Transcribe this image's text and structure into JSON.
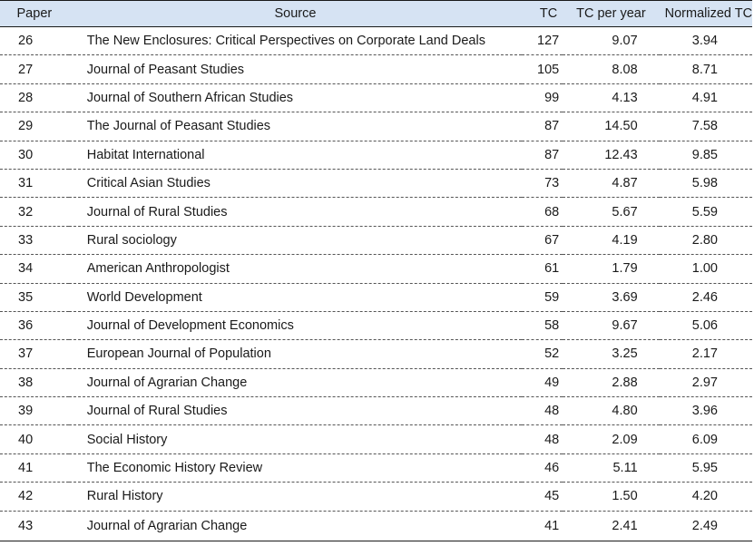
{
  "table": {
    "headers": {
      "paper": "Paper",
      "source": "Source",
      "tc": "TC",
      "tc_per_year": "TC per year",
      "normalized_tc": "Normalized TC"
    },
    "rows": [
      {
        "paper": "26",
        "source": "The New Enclosures: Critical Perspectives on Corporate Land Deals",
        "tc": "127",
        "tc_per_year": "9.07",
        "normalized_tc": "3.94"
      },
      {
        "paper": "27",
        "source": "Journal of Peasant Studies",
        "tc": "105",
        "tc_per_year": "8.08",
        "normalized_tc": "8.71"
      },
      {
        "paper": "28",
        "source": "Journal of Southern African Studies",
        "tc": "99",
        "tc_per_year": "4.13",
        "normalized_tc": "4.91"
      },
      {
        "paper": "29",
        "source": "The Journal of Peasant Studies",
        "tc": "87",
        "tc_per_year": "14.50",
        "normalized_tc": "7.58"
      },
      {
        "paper": "30",
        "source": "Habitat International",
        "tc": "87",
        "tc_per_year": "12.43",
        "normalized_tc": "9.85"
      },
      {
        "paper": "31",
        "source": "Critical Asian Studies",
        "tc": "73",
        "tc_per_year": "4.87",
        "normalized_tc": "5.98"
      },
      {
        "paper": "32",
        "source": "Journal of Rural Studies",
        "tc": "68",
        "tc_per_year": "5.67",
        "normalized_tc": "5.59"
      },
      {
        "paper": "33",
        "source": "Rural sociology",
        "tc": "67",
        "tc_per_year": "4.19",
        "normalized_tc": "2.80"
      },
      {
        "paper": "34",
        "source": "American Anthropologist",
        "tc": "61",
        "tc_per_year": "1.79",
        "normalized_tc": "1.00"
      },
      {
        "paper": "35",
        "source": "World Development",
        "tc": "59",
        "tc_per_year": "3.69",
        "normalized_tc": "2.46"
      },
      {
        "paper": "36",
        "source": "Journal of Development Economics",
        "tc": "58",
        "tc_per_year": "9.67",
        "normalized_tc": "5.06"
      },
      {
        "paper": "37",
        "source": "European Journal of Population",
        "tc": "52",
        "tc_per_year": "3.25",
        "normalized_tc": "2.17"
      },
      {
        "paper": "38",
        "source": "Journal of Agrarian Change",
        "tc": "49",
        "tc_per_year": "2.88",
        "normalized_tc": "2.97"
      },
      {
        "paper": "39",
        "source": "Journal of Rural Studies",
        "tc": "48",
        "tc_per_year": "4.80",
        "normalized_tc": "3.96"
      },
      {
        "paper": "40",
        "source": "Social History",
        "tc": "48",
        "tc_per_year": "2.09",
        "normalized_tc": "6.09"
      },
      {
        "paper": "41",
        "source": "The Economic History Review",
        "tc": "46",
        "tc_per_year": "5.11",
        "normalized_tc": "5.95"
      },
      {
        "paper": "42",
        "source": "Rural History",
        "tc": "45",
        "tc_per_year": "1.50",
        "normalized_tc": "4.20"
      },
      {
        "paper": "43",
        "source": "Journal of Agrarian Change",
        "tc": "41",
        "tc_per_year": "2.41",
        "normalized_tc": "2.49"
      }
    ]
  }
}
